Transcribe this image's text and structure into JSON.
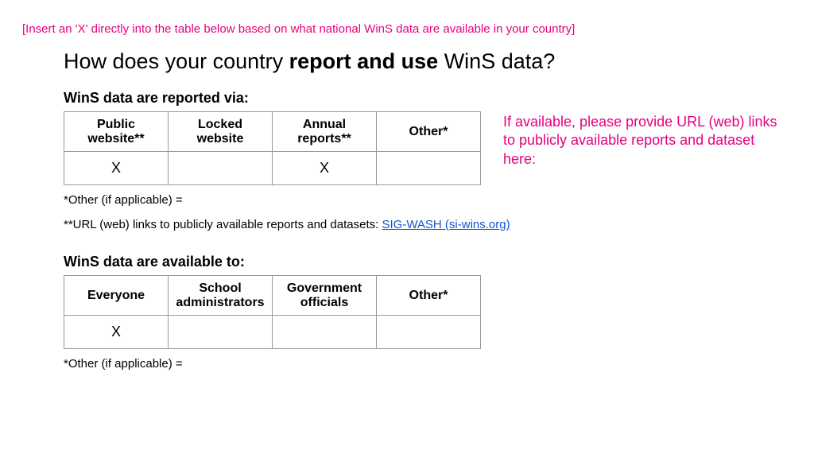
{
  "instruction": "[Insert an 'X' directly into the table below based on what national WinS data are available in your country]",
  "title": {
    "pre": "How does your country ",
    "bold": "report and use",
    "post": " WinS data?"
  },
  "section1": {
    "heading": "WinS data are reported via:",
    "columns": [
      "Public website**",
      "Locked website",
      "Annual reports**",
      "Other*"
    ],
    "values": [
      "X",
      "",
      "X",
      ""
    ],
    "footnote_other": "*Other (if applicable) =",
    "footnote_url_label": "**URL (web) links to publicly available reports and datasets:  ",
    "footnote_url_link": "SIG-WASH (si-wins.org)"
  },
  "side_note": "If available, please provide URL (web) links to publicly available reports and dataset here:",
  "section2": {
    "heading": "WinS data are available to:",
    "columns": [
      "Everyone",
      "School administrators",
      "Government officials",
      "Other*"
    ],
    "values": [
      "X",
      "",
      "",
      ""
    ],
    "footnote_other": "*Other (if applicable) ="
  },
  "colors": {
    "accent": "#e6007e",
    "link": "#1155cc",
    "border": "#999999",
    "text": "#000000",
    "bg": "#ffffff"
  }
}
